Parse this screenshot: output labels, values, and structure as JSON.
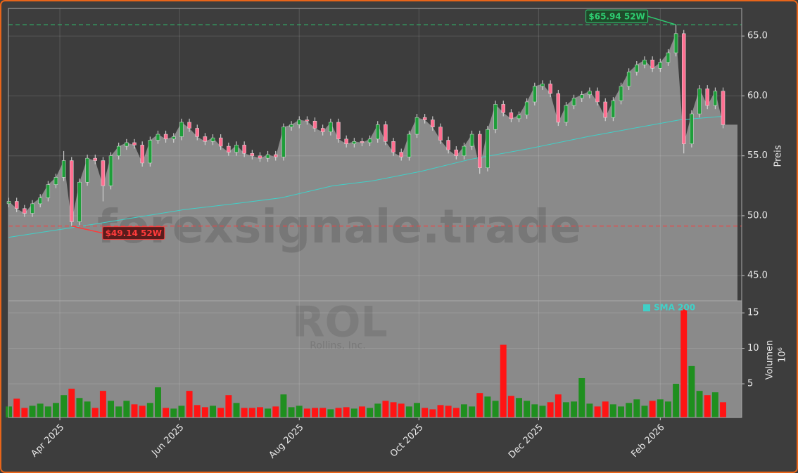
{
  "chart_data": {
    "type": "candlestick",
    "watermark": "forexsignale.trade",
    "ticker": "ROL",
    "company": "Rollins, Inc.",
    "ylabel": "Preis",
    "volume_label": "Volumen",
    "volume_unit": "10⁶",
    "x": [
      5,
      9,
      13,
      17,
      21,
      25,
      29,
      33,
      37,
      41,
      45,
      49,
      53,
      57,
      61,
      65,
      69,
      73,
      77,
      81,
      85,
      89,
      93,
      97,
      101,
      105,
      109,
      113,
      117,
      121,
      125,
      129,
      133,
      137,
      141,
      145,
      149,
      153,
      157,
      161,
      165,
      169,
      173,
      177,
      181,
      185,
      189,
      193,
      197,
      201,
      205,
      209,
      213,
      217,
      221,
      225,
      229,
      233,
      237,
      241,
      245,
      249,
      253,
      257,
      261,
      265,
      269,
      273,
      277,
      281,
      285,
      289,
      293,
      297,
      301,
      305,
      309,
      313,
      317,
      321,
      325,
      329,
      333,
      337,
      341,
      345,
      349,
      353,
      357,
      361,
      365,
      369
    ],
    "open": [
      51.0,
      51.2,
      50.6,
      50.2,
      51.0,
      51.5,
      52.6,
      53.2,
      54.6,
      49.5,
      52.8,
      54.8,
      54.6,
      52.5,
      55.0,
      55.8,
      56.1,
      55.9,
      54.4,
      56.3,
      56.8,
      56.4,
      56.6,
      57.8,
      57.3,
      56.6,
      56.2,
      56.5,
      55.8,
      55.3,
      55.9,
      55.2,
      55.0,
      54.8,
      55.1,
      54.9,
      57.4,
      57.6,
      58.0,
      57.9,
      57.3,
      57.0,
      57.8,
      56.4,
      56.0,
      56.2,
      56.1,
      56.4,
      57.6,
      56.2,
      55.3,
      54.9,
      56.8,
      58.2,
      58.0,
      57.4,
      56.3,
      55.5,
      55.0,
      55.8,
      56.8,
      54.0,
      57.2,
      59.3,
      58.6,
      58.1,
      58.4,
      59.5,
      60.8,
      61.0,
      60.2,
      57.8,
      59.2,
      59.8,
      60.1,
      60.4,
      59.5,
      58.2,
      59.6,
      60.8,
      62.0,
      62.6,
      63.0,
      62.3,
      62.8,
      63.6,
      65.2,
      56.0,
      58.5,
      60.6,
      59.2,
      60.4
    ],
    "high": [
      51.5,
      51.5,
      50.9,
      51.3,
      51.8,
      52.9,
      53.5,
      55.4,
      54.9,
      53.1,
      55.1,
      55.1,
      54.9,
      55.3,
      56.1,
      56.4,
      56.4,
      56.2,
      56.6,
      57.1,
      57.1,
      56.9,
      58.1,
      58.1,
      57.6,
      56.9,
      56.8,
      56.8,
      56.1,
      56.2,
      56.2,
      55.5,
      55.3,
      55.4,
      55.4,
      57.7,
      57.9,
      58.3,
      58.3,
      58.2,
      57.6,
      58.1,
      58.1,
      56.7,
      56.5,
      56.5,
      56.7,
      57.9,
      57.9,
      56.5,
      55.6,
      57.1,
      58.5,
      58.5,
      58.3,
      57.7,
      56.6,
      55.8,
      56.1,
      57.1,
      57.1,
      57.5,
      59.6,
      59.6,
      58.9,
      58.7,
      59.8,
      61.1,
      61.3,
      61.3,
      60.5,
      59.5,
      60.1,
      60.4,
      60.7,
      60.7,
      59.8,
      59.9,
      61.1,
      62.3,
      62.9,
      63.3,
      63.3,
      63.1,
      63.9,
      65.94,
      65.5,
      58.8,
      60.9,
      60.9,
      60.7,
      60.7
    ],
    "low": [
      50.7,
      50.3,
      49.9,
      49.9,
      50.7,
      51.2,
      52.3,
      52.9,
      49.14,
      49.2,
      52.5,
      54.3,
      51.2,
      52.2,
      54.7,
      55.5,
      55.6,
      54.1,
      54.1,
      56.0,
      56.1,
      56.1,
      56.3,
      57.0,
      56.3,
      55.9,
      55.9,
      55.5,
      55.0,
      55.0,
      54.9,
      54.7,
      54.5,
      54.5,
      54.6,
      54.6,
      57.1,
      57.3,
      57.6,
      57.0,
      56.7,
      56.7,
      56.1,
      55.7,
      55.7,
      55.8,
      55.8,
      56.1,
      55.9,
      55.0,
      54.6,
      54.6,
      56.5,
      57.7,
      57.1,
      56.0,
      55.2,
      54.7,
      54.7,
      55.5,
      53.5,
      53.7,
      56.9,
      58.3,
      57.8,
      57.8,
      58.1,
      59.2,
      60.5,
      59.9,
      57.5,
      57.5,
      58.9,
      59.5,
      59.8,
      59.2,
      57.9,
      57.9,
      59.3,
      60.5,
      61.7,
      62.3,
      62.0,
      62.0,
      62.5,
      63.3,
      55.2,
      55.7,
      58.2,
      58.9,
      58.9,
      57.3
    ],
    "close": [
      51.2,
      50.6,
      50.2,
      51.0,
      51.5,
      52.6,
      53.2,
      54.6,
      49.5,
      52.8,
      54.8,
      54.6,
      52.5,
      55.0,
      55.8,
      56.1,
      55.9,
      54.4,
      56.3,
      56.8,
      56.4,
      56.6,
      57.8,
      57.3,
      56.6,
      56.2,
      56.5,
      55.8,
      55.3,
      55.9,
      55.2,
      55.0,
      54.8,
      55.1,
      54.9,
      57.4,
      57.6,
      58.0,
      57.9,
      57.3,
      57.0,
      57.8,
      56.4,
      56.0,
      56.2,
      56.1,
      56.4,
      57.6,
      56.2,
      55.3,
      54.9,
      56.8,
      58.2,
      58.0,
      57.4,
      56.3,
      55.5,
      55.0,
      55.8,
      56.8,
      54.0,
      57.2,
      59.3,
      58.6,
      58.1,
      58.4,
      59.5,
      60.8,
      61.0,
      60.2,
      57.8,
      59.2,
      59.8,
      60.1,
      60.4,
      59.5,
      58.2,
      59.6,
      60.8,
      62.0,
      62.6,
      63.0,
      62.3,
      62.8,
      63.6,
      65.2,
      56.0,
      58.5,
      60.6,
      59.2,
      60.4,
      57.6
    ],
    "volume": [
      1.8,
      2.9,
      1.6,
      1.9,
      2.2,
      1.8,
      2.3,
      3.4,
      4.3,
      3.0,
      2.5,
      1.6,
      4.0,
      2.6,
      1.8,
      2.6,
      2.1,
      1.9,
      2.3,
      4.5,
      1.6,
      1.5,
      1.9,
      4.0,
      2.0,
      1.7,
      1.9,
      1.6,
      3.4,
      2.3,
      1.6,
      1.6,
      1.7,
      1.5,
      1.8,
      3.5,
      1.7,
      1.9,
      1.5,
      1.6,
      1.6,
      1.4,
      1.6,
      1.7,
      1.5,
      1.8,
      1.6,
      2.2,
      2.6,
      2.4,
      2.2,
      1.8,
      2.3,
      1.6,
      1.4,
      2.0,
      1.9,
      1.6,
      2.1,
      1.8,
      3.7,
      3.2,
      2.6,
      10.5,
      3.3,
      3.0,
      2.6,
      2.1,
      1.9,
      2.4,
      3.5,
      2.4,
      2.5,
      5.8,
      2.2,
      1.8,
      2.5,
      2.1,
      1.8,
      2.3,
      2.8,
      1.9,
      2.6,
      2.8,
      2.5,
      5.0,
      15.5,
      7.5,
      4.0,
      3.4,
      3.8,
      2.4
    ],
    "up_color": "#1e9e3a",
    "down_color": "#ff6f91",
    "volume_up_color": "#1f8f1f",
    "volume_down_color": "#ff1414",
    "area_color": "#8a8a8a",
    "sma": {
      "name": "SMA 200",
      "color": "#40d0c8",
      "x": [
        5,
        37,
        60,
        94,
        120,
        144,
        170,
        190,
        215,
        240,
        270,
        300,
        330,
        347,
        369
      ],
      "values": [
        48.2,
        49.0,
        49.6,
        50.5,
        51.0,
        51.5,
        52.5,
        52.9,
        53.7,
        54.7,
        55.6,
        56.6,
        57.5,
        58.0,
        58.3
      ]
    },
    "xlim": [
      4.8,
      378.5
    ],
    "xticks": [
      {
        "value": 31,
        "label": "Apr 2025"
      },
      {
        "value": 92,
        "label": "Jun 2025"
      },
      {
        "value": 153,
        "label": "Aug 2025"
      },
      {
        "value": 214,
        "label": "Oct 2025"
      },
      {
        "value": 275,
        "label": "Dec 2025"
      },
      {
        "value": 337,
        "label": "Feb 2026"
      }
    ],
    "ylim": [
      42.9,
      67.3
    ],
    "yticks": [
      {
        "value": 45,
        "label": "45.0"
      },
      {
        "value": 50,
        "label": "50.0"
      },
      {
        "value": 55,
        "label": "55.0"
      },
      {
        "value": 60,
        "label": "60.0"
      },
      {
        "value": 65,
        "label": "65.0"
      }
    ],
    "volume_ylim": [
      0.25,
      16.7
    ],
    "volume_yticks": [
      5,
      10,
      15
    ],
    "annotations": [
      {
        "text": "$65.94 52W",
        "value": 65.94,
        "color": "#2ecc71"
      },
      {
        "text": "$49.14 52W",
        "value": 49.14,
        "color": "#ff3b3b"
      }
    ],
    "grid": true
  }
}
